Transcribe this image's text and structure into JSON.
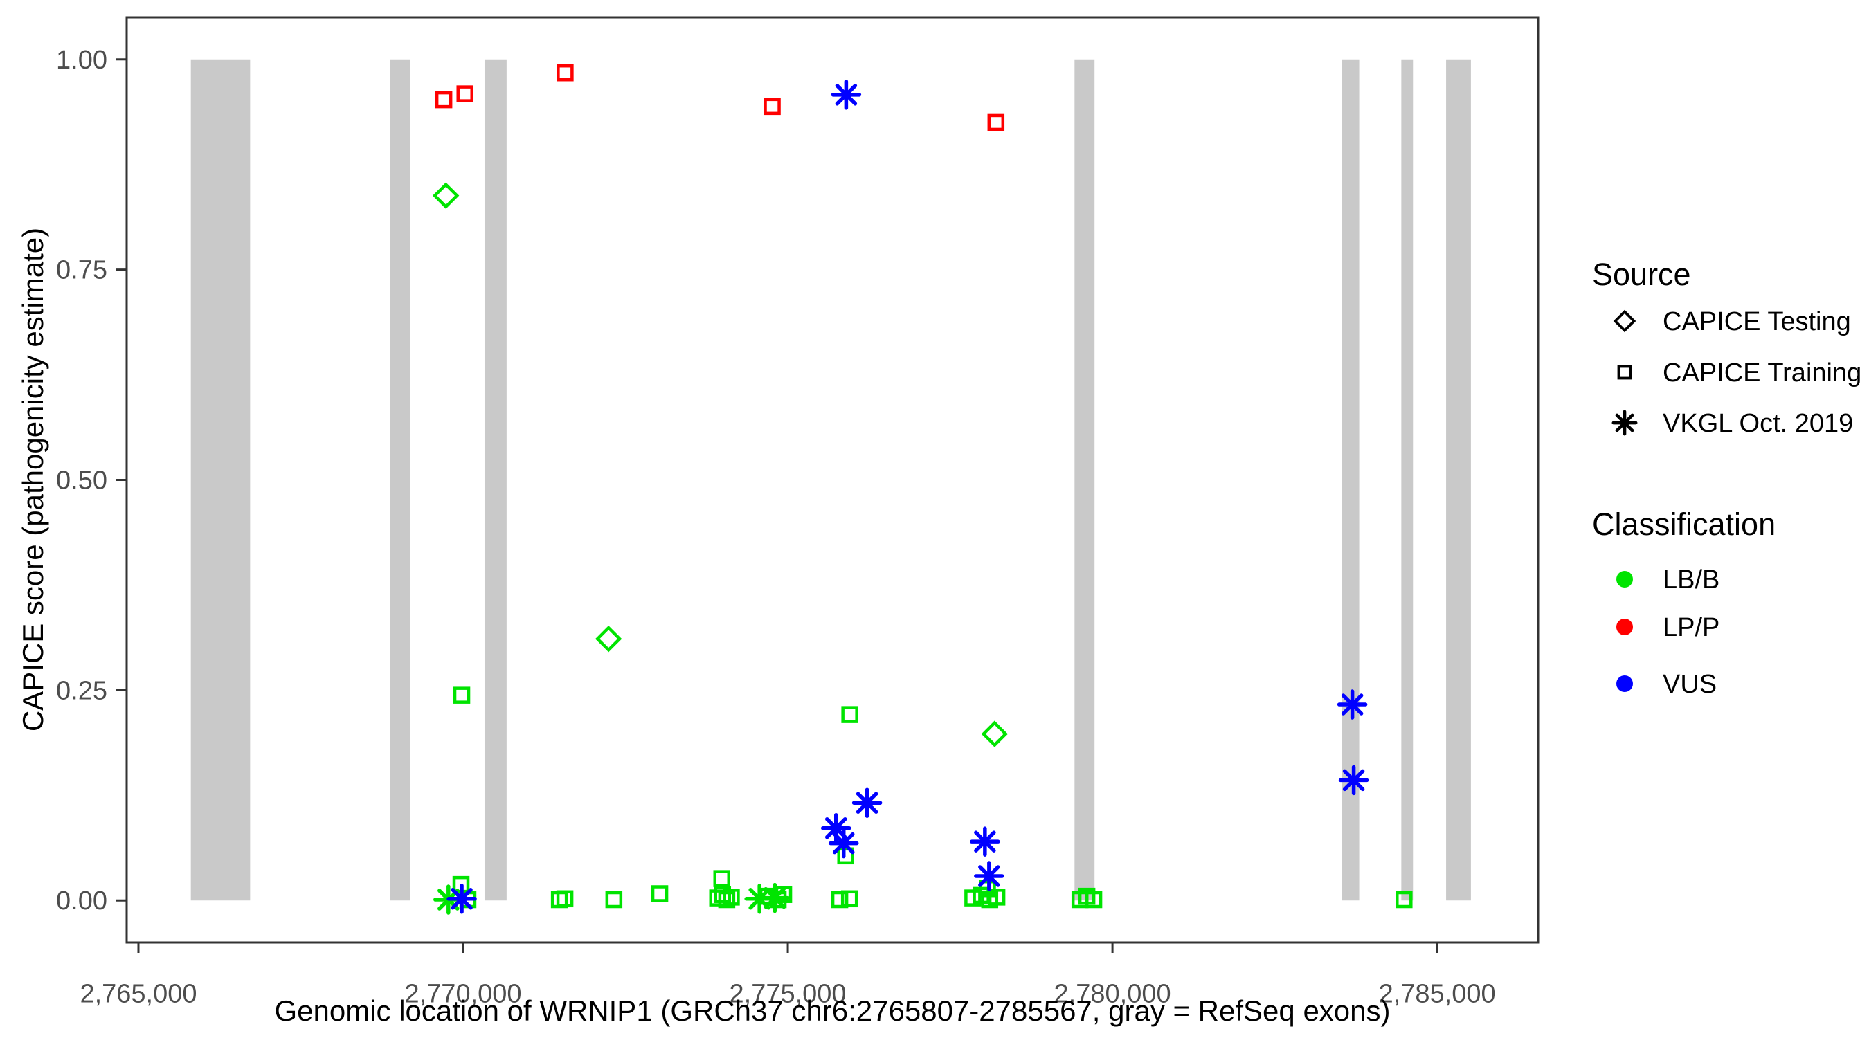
{
  "chart_data": {
    "type": "scatter",
    "xlabel": "Genomic location of WRNIP1 (GRCh37 chr6:2765807-2785567, gray = RefSeq exons)",
    "ylabel": "CAPICE score (pathogenicity estimate)",
    "xlim": [
      2764819,
      2786555
    ],
    "ylim": [
      -0.05,
      1.05
    ],
    "grid": "off",
    "x_ticks": [
      {
        "value": 2765000,
        "label": "2,765,000"
      },
      {
        "value": 2770000,
        "label": "2,770,000"
      },
      {
        "value": 2775000,
        "label": "2,775,000"
      },
      {
        "value": 2780000,
        "label": "2,780,000"
      },
      {
        "value": 2785000,
        "label": "2,785,000"
      }
    ],
    "y_ticks": [
      {
        "value": 0.0,
        "label": "0.00"
      },
      {
        "value": 0.25,
        "label": "0.25"
      },
      {
        "value": 0.5,
        "label": "0.50"
      },
      {
        "value": 0.75,
        "label": "0.75"
      },
      {
        "value": 1.0,
        "label": "1.00"
      }
    ],
    "exon_color": "#C9C9C9",
    "exon_score_span": [
      0,
      1
    ],
    "exons": [
      [
        2765807,
        2766720
      ],
      [
        2768875,
        2769183
      ],
      [
        2770330,
        2770670
      ],
      [
        2779416,
        2779724
      ],
      [
        2783535,
        2783800
      ],
      [
        2784448,
        2784628
      ],
      [
        2785138,
        2785520
      ]
    ],
    "classification_colors": {
      "LB/B": "#00E400",
      "LP/P": "#FF0000",
      "VUS": "#0000FF"
    },
    "series": [
      {
        "name": "CAPICE Training LB/B",
        "source": "CAPICE Training",
        "classification": "LB/B",
        "marker": "square",
        "points": [
          [
            2769979,
            0.244
          ],
          [
            2775955,
            0.221
          ],
          [
            2775892,
            0.053
          ],
          [
            2769968,
            0.019
          ],
          [
            2770074,
            0.001
          ],
          [
            2771483,
            0.001
          ],
          [
            2771568,
            0.002
          ],
          [
            2772322,
            0.001
          ],
          [
            2773028,
            0.008
          ],
          [
            2773984,
            0.026
          ],
          [
            2773920,
            0.003
          ],
          [
            2773995,
            0.007
          ],
          [
            2774060,
            0.001
          ],
          [
            2774130,
            0.004
          ],
          [
            2774692,
            0.005
          ],
          [
            2774851,
            0.001
          ],
          [
            2774936,
            0.007
          ],
          [
            2775800,
            0.001
          ],
          [
            2775950,
            0.002
          ],
          [
            2777850,
            0.003
          ],
          [
            2777980,
            0.006
          ],
          [
            2778075,
            0.014
          ],
          [
            2778110,
            0.001
          ],
          [
            2778220,
            0.004
          ],
          [
            2779500,
            0.001
          ],
          [
            2779606,
            0.005
          ],
          [
            2779712,
            0.001
          ],
          [
            2784490,
            0.001
          ]
        ]
      },
      {
        "name": "VKGL Oct. 2019 LB/B",
        "source": "VKGL Oct. 2019",
        "classification": "LB/B",
        "marker": "asterisk",
        "points": [
          [
            2769774,
            0.001
          ],
          [
            2774564,
            0.002
          ],
          [
            2774800,
            0.003
          ]
        ]
      },
      {
        "name": "CAPICE Training LP/P",
        "source": "CAPICE Training",
        "classification": "LP/P",
        "marker": "square",
        "points": [
          [
            2769703,
            0.952
          ],
          [
            2770029,
            0.959
          ],
          [
            2771571,
            0.984
          ],
          [
            2774760,
            0.944
          ],
          [
            2778206,
            0.925
          ]
        ]
      },
      {
        "name": "CAPICE Testing LB/B",
        "source": "CAPICE Testing",
        "classification": "LB/B",
        "marker": "diamond",
        "points": [
          [
            2769735,
            0.838
          ],
          [
            2772240,
            0.311
          ],
          [
            2778185,
            0.198
          ]
        ]
      },
      {
        "name": "VKGL Oct. 2019 VUS",
        "source": "VKGL Oct. 2019",
        "classification": "VUS",
        "marker": "asterisk",
        "points": [
          [
            2775899,
            0.958
          ],
          [
            2776221,
            0.116
          ],
          [
            2775743,
            0.086
          ],
          [
            2775860,
            0.068
          ],
          [
            2778036,
            0.07
          ],
          [
            2778100,
            0.029
          ],
          [
            2769979,
            0.002
          ],
          [
            2783694,
            0.233
          ],
          [
            2783715,
            0.143
          ]
        ]
      }
    ],
    "legend": {
      "position": "right",
      "source": {
        "title": "Source",
        "items": [
          {
            "label": "CAPICE Testing",
            "marker": "diamond"
          },
          {
            "label": "CAPICE Training",
            "marker": "square"
          },
          {
            "label": "VKGL Oct. 2019",
            "marker": "asterisk"
          }
        ]
      },
      "classification": {
        "title": "Classification",
        "items": [
          {
            "label": "LB/B",
            "color": "#00E400"
          },
          {
            "label": "LP/P",
            "color": "#FF0000"
          },
          {
            "label": "VUS",
            "color": "#0000FF"
          }
        ]
      }
    }
  }
}
